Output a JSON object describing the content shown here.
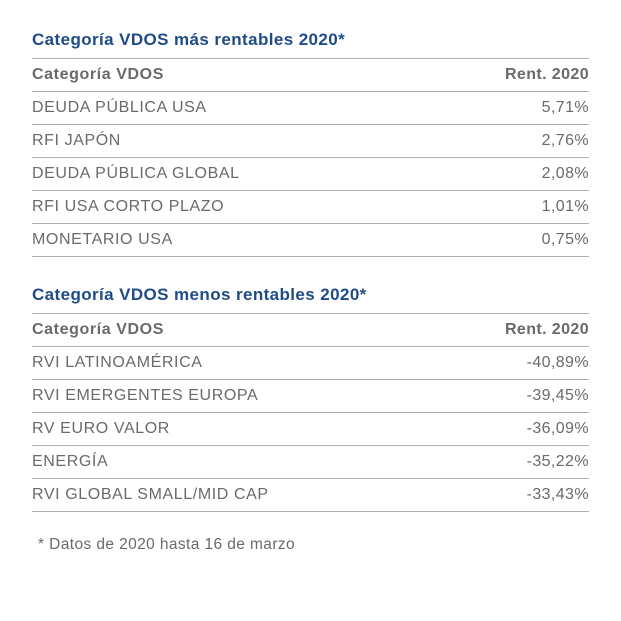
{
  "colors": {
    "title": "#1f4c88",
    "text": "#6a6a6a",
    "border": "#b0b0b0",
    "background": "#ffffff"
  },
  "tables": [
    {
      "title": "Categoría VDOS más rentables 2020*",
      "columns": [
        "Categoría VDOS",
        "Rent. 2020"
      ],
      "rows": [
        [
          "DEUDA PÚBLICA USA",
          "5,71%"
        ],
        [
          "RFI JAPÓN",
          "2,76%"
        ],
        [
          "DEUDA PÚBLICA GLOBAL",
          "2,08%"
        ],
        [
          "RFI USA CORTO PLAZO",
          "1,01%"
        ],
        [
          "MONETARIO USA",
          "0,75%"
        ]
      ]
    },
    {
      "title": "Categoría VDOS menos rentables 2020*",
      "columns": [
        "Categoría VDOS",
        "Rent. 2020"
      ],
      "rows": [
        [
          "RVI LATINOAMÉRICA",
          "-40,89%"
        ],
        [
          "RVI EMERGENTES EUROPA",
          "-39,45%"
        ],
        [
          "RV EURO VALOR",
          "-36,09%"
        ],
        [
          "ENERGÍA",
          "-35,22%"
        ],
        [
          "RVI GLOBAL SMALL/MID CAP",
          "-33,43%"
        ]
      ]
    }
  ],
  "footnote": "* Datos de 2020 hasta 16 de marzo"
}
